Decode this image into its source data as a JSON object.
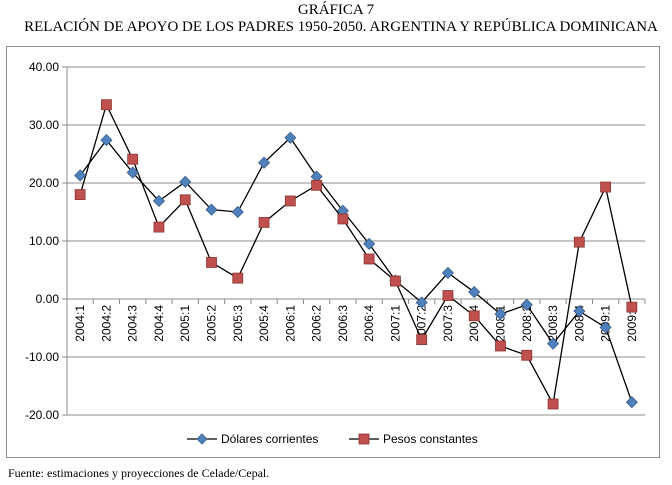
{
  "figure": {
    "caption": "GRÁFICA 7",
    "title": "RELACIÓN DE APOYO DE LOS PADRES 1950-2050. ARGENTINA Y REPÚBLICA DOMINICANA",
    "source": "Fuente: estimaciones y proyecciones de Celade/Cepal."
  },
  "chart_data": {
    "type": "line",
    "title": "RELACIÓN DE APOYO DE LOS PADRES 1950-2050. ARGENTINA Y REPÚBLICA DOMINICANA",
    "xlabel": "",
    "ylabel": "",
    "categories": [
      "2004:1",
      "2004:2",
      "2004:3",
      "2004:4",
      "2005:1",
      "2005:2",
      "2005:3",
      "2005:4",
      "2006:1",
      "2006:2",
      "2006:3",
      "2006:4",
      "2007:1",
      "2007:2",
      "2007:3",
      "2007:4",
      "2008:1",
      "2008:2",
      "2008:3",
      "2008:4",
      "2009:1",
      "2009:2"
    ],
    "ylim": [
      -20,
      40
    ],
    "yticks": [
      40,
      30,
      20,
      10,
      0,
      -10,
      -20
    ],
    "ytick_labels": [
      "40.00",
      "30.00",
      "20.00",
      "10.00",
      "0.00",
      "-10.00",
      "-20.00"
    ],
    "grid": "horizontal",
    "legend_position": "bottom",
    "series": [
      {
        "name": "Dólares corrientes",
        "color": "#4f81bd",
        "marker": "diamond",
        "values": [
          21.3,
          27.4,
          21.8,
          16.9,
          20.2,
          15.4,
          15.0,
          23.5,
          27.8,
          21.1,
          15.2,
          9.5,
          3.2,
          -0.6,
          4.5,
          1.2,
          -2.6,
          -1.0,
          -7.7,
          -2.1,
          -4.9,
          -17.8
        ]
      },
      {
        "name": "Pesos constantes",
        "color": "#c0504d",
        "marker": "square",
        "values": [
          18.0,
          33.5,
          24.1,
          12.4,
          17.1,
          6.3,
          3.6,
          13.2,
          16.9,
          19.6,
          13.8,
          6.9,
          3.1,
          -7.0,
          0.6,
          -2.9,
          -8.1,
          -9.7,
          -18.1,
          9.8,
          19.3,
          -1.4
        ]
      }
    ]
  }
}
